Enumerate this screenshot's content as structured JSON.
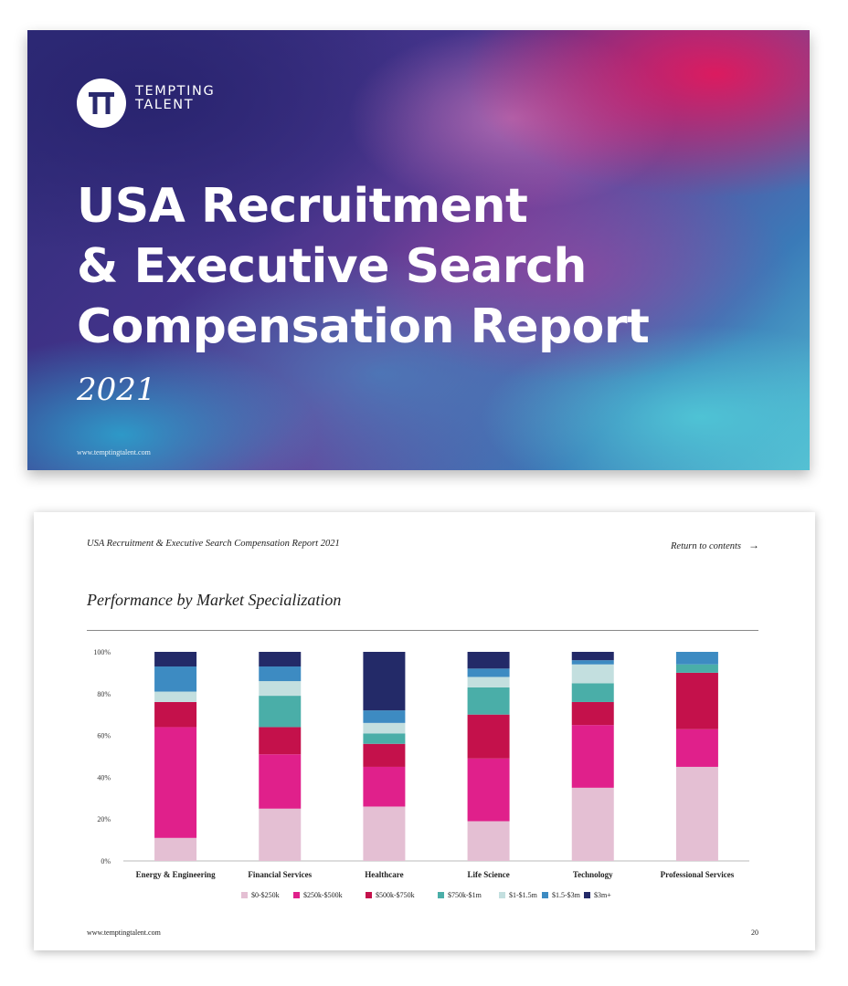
{
  "cover": {
    "logo_initials": "TT",
    "logo_line1": "TEMPTING",
    "logo_line2": "TALENT",
    "title_line1": "USA Recruitment",
    "title_line2": "& Executive Search",
    "title_line3": "Compensation Report",
    "year": "2021",
    "url": "www.temptingtalent.com"
  },
  "page": {
    "header_title": "USA Recruitment & Executive Search Compensation Report 2021",
    "return_label": "Return to contents",
    "return_arrow": "→",
    "section_title": "Performance by Market Specialization",
    "footer_url": "www.temptingtalent.com",
    "page_number": "20"
  },
  "chart_data": {
    "type": "bar",
    "stacked": true,
    "percent": true,
    "title": "Performance by Market Specialization",
    "xlabel": "",
    "ylabel": "",
    "ylim": [
      0,
      100
    ],
    "yticks": [
      "0%",
      "20%",
      "40%",
      "60%",
      "80%",
      "100%"
    ],
    "grid": false,
    "legend_position": "bottom",
    "categories": [
      "Energy & Engineering",
      "Financial Services",
      "Healthcare",
      "Life Science",
      "Technology",
      "Professional Services"
    ],
    "series": [
      {
        "name": "$0-$250k",
        "color": "#e4bfd3",
        "values": [
          11,
          25,
          26,
          19,
          35,
          45
        ]
      },
      {
        "name": "$250k-$500k",
        "color": "#e0208b",
        "values": [
          53,
          26,
          19,
          30,
          30,
          18
        ]
      },
      {
        "name": "$500k-$750k",
        "color": "#c4114b",
        "values": [
          12,
          13,
          11,
          21,
          11,
          27
        ]
      },
      {
        "name": "$750k-$1m",
        "color": "#4aaea8",
        "values": [
          0,
          15,
          5,
          13,
          9,
          4
        ]
      },
      {
        "name": "$1-$1.5m",
        "color": "#c3dfdf",
        "values": [
          5,
          7,
          5,
          5,
          9,
          0
        ]
      },
      {
        "name": "$1.5-$3m",
        "color": "#3d8bc2",
        "values": [
          12,
          7,
          6,
          4,
          2,
          6
        ]
      },
      {
        "name": "$3m+",
        "color": "#232a68",
        "values": [
          7,
          7,
          28,
          8,
          4,
          0
        ]
      }
    ]
  }
}
